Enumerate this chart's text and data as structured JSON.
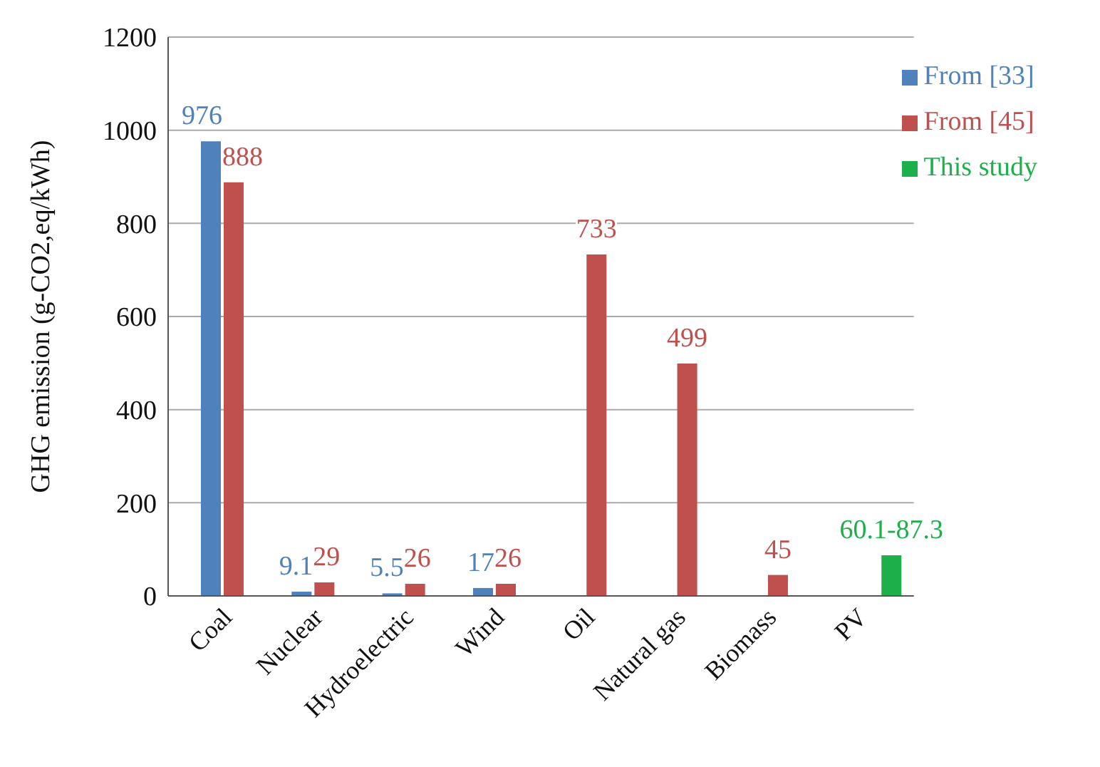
{
  "chart_data": {
    "type": "bar",
    "ylabel": "GHG emission (g-CO2,eq/kWh)",
    "categories": [
      "Coal",
      "Nuclear",
      "Hydroelectric",
      "Wind",
      "Oil",
      "Natural gas",
      "Biomass",
      "PV"
    ],
    "series": [
      {
        "name": "From [33]",
        "color": "#4f81bd",
        "values": [
          976,
          9.1,
          5.5,
          17,
          null,
          null,
          null,
          null
        ],
        "value_labels": [
          "976",
          "9.1",
          "5.5",
          "17",
          null,
          null,
          null,
          null
        ]
      },
      {
        "name": "From [45]",
        "color": "#c0504d",
        "values": [
          888,
          29,
          26,
          26,
          733,
          499,
          45,
          null
        ],
        "value_labels": [
          "888",
          "29",
          "26",
          "26",
          "733",
          "499",
          "45",
          null
        ]
      },
      {
        "name": "This study",
        "color": "#1db04a",
        "values": [
          null,
          null,
          null,
          null,
          null,
          null,
          null,
          87.3
        ],
        "value_labels": [
          null,
          null,
          null,
          null,
          null,
          null,
          null,
          "60.1-87.3"
        ]
      }
    ],
    "ylim": [
      0,
      1200
    ],
    "yticks": [
      0,
      200,
      400,
      600,
      800,
      1000,
      1200
    ],
    "grid": "y",
    "legend": "top right"
  }
}
